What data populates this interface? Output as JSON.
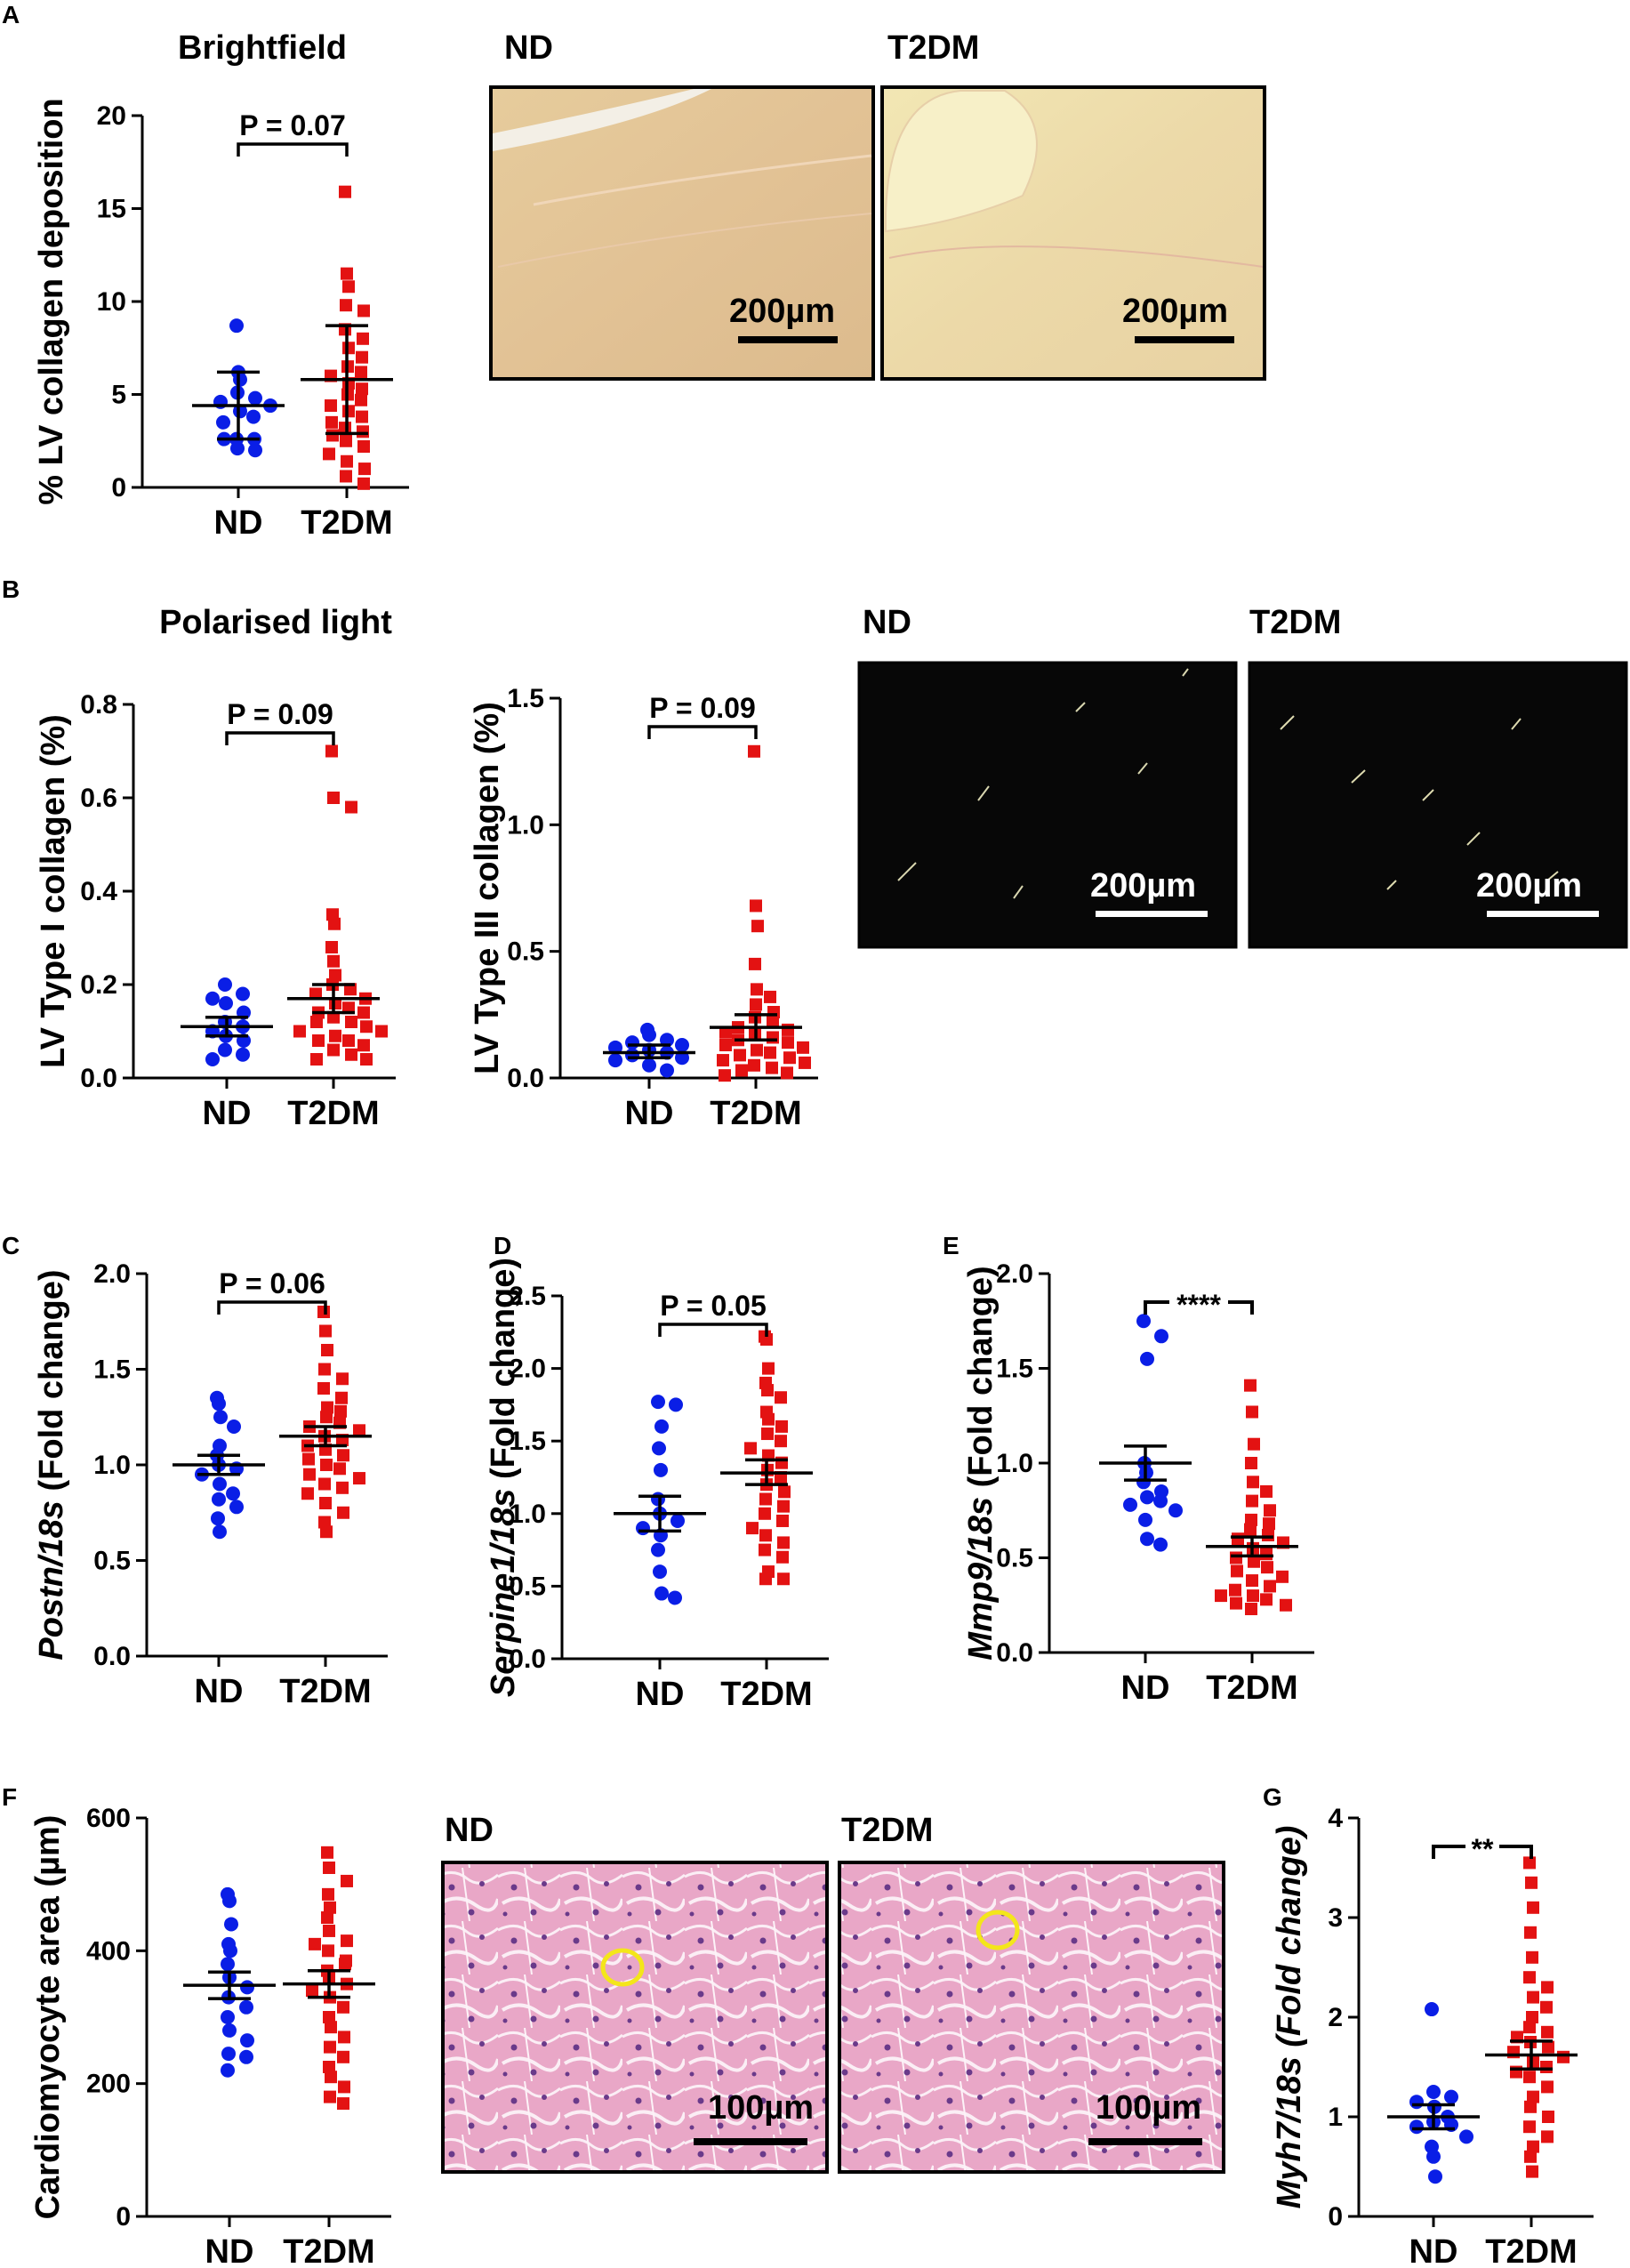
{
  "colors": {
    "nd": "#0a1ee6",
    "t2dm": "#e31212",
    "axis": "#000000"
  },
  "images": {
    "A": {
      "groups": [
        "ND",
        "T2DM"
      ],
      "scalebar": "200µm",
      "style": "brightfield"
    },
    "B": {
      "groups": [
        "ND",
        "T2DM"
      ],
      "scalebar": "200µm",
      "style": "polarised"
    },
    "F": {
      "groups": [
        "ND",
        "T2DM"
      ],
      "scalebar": "100µm",
      "style": "he"
    }
  },
  "chart_data": [
    {
      "id": "A",
      "panel": "A",
      "type": "scatter",
      "title": "Brightfield",
      "ylabel": "% LV collagen deposition",
      "ylim": [
        0,
        20
      ],
      "yticks": [
        0,
        5,
        10,
        15,
        20
      ],
      "yticklabels": [
        "0",
        "5",
        "10",
        "15",
        "20"
      ],
      "categories": [
        "ND",
        "T2DM"
      ],
      "significance": "P = 0.07",
      "summary": [
        {
          "center": 4.4,
          "lo": 2.6,
          "hi": 6.2
        },
        {
          "center": 5.8,
          "lo": 2.9,
          "hi": 8.7
        }
      ],
      "series": [
        {
          "group": "ND",
          "values": [
            8.7,
            6.2,
            5.8,
            5.1,
            4.8,
            4.6,
            4.4,
            4.1,
            3.8,
            3.5,
            2.6,
            2.6,
            2.6,
            2.1,
            2.0
          ]
        },
        {
          "group": "T2DM",
          "values": [
            15.9,
            11.5,
            10.8,
            9.8,
            9.5,
            8.5,
            8.0,
            7.5,
            7.0,
            6.5,
            6.2,
            6.0,
            5.6,
            5.3,
            5.0,
            4.7,
            4.4,
            4.1,
            3.8,
            3.5,
            3.2,
            3.0,
            2.8,
            2.5,
            2.2,
            1.8,
            1.4,
            1.0,
            0.6,
            0.2
          ]
        }
      ]
    },
    {
      "id": "B1",
      "panel": "B",
      "type": "scatter",
      "title": "Polarised light",
      "ylabel": "LV Type I collagen (%)",
      "ylim": [
        0,
        0.8
      ],
      "yticks": [
        0,
        0.2,
        0.4,
        0.6,
        0.8
      ],
      "yticklabels": [
        "0.0",
        "0.2",
        "0.4",
        "0.6",
        "0.8"
      ],
      "categories": [
        "ND",
        "T2DM"
      ],
      "significance": "P = 0.09",
      "summary": [
        {
          "center": 0.11,
          "lo": 0.09,
          "hi": 0.13
        },
        {
          "center": 0.17,
          "lo": 0.14,
          "hi": 0.2
        }
      ],
      "series": [
        {
          "group": "ND",
          "values": [
            0.2,
            0.18,
            0.17,
            0.16,
            0.14,
            0.12,
            0.11,
            0.1,
            0.09,
            0.08,
            0.06,
            0.05,
            0.04
          ]
        },
        {
          "group": "T2DM",
          "values": [
            0.7,
            0.6,
            0.58,
            0.35,
            0.33,
            0.28,
            0.25,
            0.22,
            0.2,
            0.19,
            0.18,
            0.17,
            0.16,
            0.15,
            0.14,
            0.14,
            0.13,
            0.12,
            0.12,
            0.11,
            0.1,
            0.1,
            0.09,
            0.08,
            0.08,
            0.07,
            0.06,
            0.05,
            0.04,
            0.04
          ]
        }
      ]
    },
    {
      "id": "B2",
      "panel": "",
      "type": "scatter",
      "title": "",
      "ylabel": "LV Type III collagen (%)",
      "ylim": [
        0,
        1.5
      ],
      "yticks": [
        0,
        0.5,
        1.0,
        1.5
      ],
      "yticklabels": [
        "0.0",
        "0.5",
        "1.0",
        "1.5"
      ],
      "categories": [
        "ND",
        "T2DM"
      ],
      "significance": "P = 0.09",
      "summary": [
        {
          "center": 0.1,
          "lo": 0.08,
          "hi": 0.13
        },
        {
          "center": 0.2,
          "lo": 0.15,
          "hi": 0.25
        }
      ],
      "series": [
        {
          "group": "ND",
          "values": [
            0.19,
            0.17,
            0.15,
            0.14,
            0.13,
            0.12,
            0.11,
            0.1,
            0.09,
            0.08,
            0.07,
            0.05,
            0.03
          ]
        },
        {
          "group": "T2DM",
          "values": [
            1.29,
            0.68,
            0.6,
            0.45,
            0.35,
            0.32,
            0.29,
            0.26,
            0.24,
            0.22,
            0.2,
            0.19,
            0.18,
            0.17,
            0.16,
            0.15,
            0.14,
            0.13,
            0.12,
            0.11,
            0.1,
            0.09,
            0.08,
            0.07,
            0.06,
            0.05,
            0.04,
            0.03,
            0.02,
            0.01
          ]
        }
      ]
    },
    {
      "id": "C",
      "panel": "C",
      "type": "scatter",
      "title": "",
      "ylabel_parts": [
        {
          "t": "Postn/18s",
          "i": true
        },
        {
          "t": " (Fold change)",
          "i": false
        }
      ],
      "ylabel": "Postn/18s (Fold change)",
      "ylim": [
        0,
        2
      ],
      "yticks": [
        0,
        0.5,
        1,
        1.5,
        2
      ],
      "yticklabels": [
        "0.0",
        "0.5",
        "1.0",
        "1.5",
        "2.0"
      ],
      "categories": [
        "ND",
        "T2DM"
      ],
      "significance": "P = 0.06",
      "summary": [
        {
          "center": 1.0,
          "lo": 0.95,
          "hi": 1.05
        },
        {
          "center": 1.15,
          "lo": 1.1,
          "hi": 1.2
        }
      ],
      "series": [
        {
          "group": "ND",
          "values": [
            1.35,
            1.32,
            1.25,
            1.2,
            1.1,
            1.05,
            1.0,
            0.98,
            0.95,
            0.9,
            0.85,
            0.82,
            0.78,
            0.72,
            0.65
          ]
        },
        {
          "group": "T2DM",
          "values": [
            1.8,
            1.7,
            1.6,
            1.5,
            1.45,
            1.4,
            1.35,
            1.3,
            1.28,
            1.25,
            1.22,
            1.2,
            1.18,
            1.15,
            1.13,
            1.1,
            1.08,
            1.05,
            1.03,
            1.0,
            0.98,
            0.95,
            0.93,
            0.9,
            0.88,
            0.85,
            0.8,
            0.75,
            0.7,
            0.65
          ]
        }
      ]
    },
    {
      "id": "D",
      "panel": "D",
      "type": "scatter",
      "title": "",
      "ylabel_parts": [
        {
          "t": "Serpine1/18s",
          "i": true
        },
        {
          "t": " (Fold change)",
          "i": false
        }
      ],
      "ylabel": "Serpine1/18s (Fold change)",
      "ylim": [
        0,
        2.5
      ],
      "yticks": [
        0,
        0.5,
        1,
        1.5,
        2,
        2.5
      ],
      "yticklabels": [
        "0.0",
        "0.5",
        "1.0",
        "1.5",
        "2.0",
        "2.5"
      ],
      "categories": [
        "ND",
        "T2DM"
      ],
      "significance": "P = 0.05",
      "summary": [
        {
          "center": 1.0,
          "lo": 0.88,
          "hi": 1.12
        },
        {
          "center": 1.28,
          "lo": 1.2,
          "hi": 1.37
        }
      ],
      "series": [
        {
          "group": "ND",
          "values": [
            1.77,
            1.75,
            1.6,
            1.45,
            1.3,
            1.1,
            1.0,
            0.95,
            0.9,
            0.85,
            0.75,
            0.6,
            0.45,
            0.42
          ]
        },
        {
          "group": "T2DM",
          "values": [
            2.22,
            2.2,
            2.0,
            1.9,
            1.85,
            1.8,
            1.7,
            1.65,
            1.6,
            1.55,
            1.5,
            1.45,
            1.4,
            1.35,
            1.3,
            1.25,
            1.2,
            1.15,
            1.1,
            1.05,
            1.0,
            0.95,
            0.9,
            0.85,
            0.8,
            0.75,
            0.7,
            0.6,
            0.55,
            0.55
          ]
        }
      ]
    },
    {
      "id": "E",
      "panel": "E",
      "type": "scatter",
      "title": "",
      "ylabel_parts": [
        {
          "t": "Mmp9/18s",
          "i": true
        },
        {
          "t": " (Fold change)",
          "i": false
        }
      ],
      "ylabel": "Mmp9/18s (Fold change)",
      "ylim": [
        0,
        2
      ],
      "yticks": [
        0,
        0.5,
        1,
        1.5,
        2
      ],
      "yticklabels": [
        "0.0",
        "0.5",
        "1.0",
        "1.5",
        "2.0"
      ],
      "categories": [
        "ND",
        "T2DM"
      ],
      "significance": "****",
      "summary": [
        {
          "center": 1.0,
          "lo": 0.91,
          "hi": 1.09
        },
        {
          "center": 0.56,
          "lo": 0.51,
          "hi": 0.61
        }
      ],
      "series": [
        {
          "group": "ND",
          "values": [
            1.75,
            1.67,
            1.55,
            1.0,
            0.95,
            0.9,
            0.85,
            0.82,
            0.8,
            0.78,
            0.75,
            0.7,
            0.6,
            0.57
          ]
        },
        {
          "group": "T2DM",
          "values": [
            1.41,
            1.27,
            1.1,
            1.0,
            0.9,
            0.85,
            0.8,
            0.75,
            0.7,
            0.68,
            0.65,
            0.62,
            0.6,
            0.58,
            0.55,
            0.52,
            0.5,
            0.48,
            0.45,
            0.43,
            0.4,
            0.38,
            0.35,
            0.33,
            0.3,
            0.28,
            0.26,
            0.25,
            0.23,
            0.3
          ]
        }
      ]
    },
    {
      "id": "F",
      "panel": "F",
      "type": "scatter",
      "title": "",
      "ylabel": "Cardiomyocyte area (µm)",
      "ylim": [
        0,
        600
      ],
      "yticks": [
        0,
        200,
        400,
        600
      ],
      "yticklabels": [
        "0",
        "200",
        "400",
        "600"
      ],
      "categories": [
        "ND",
        "T2DM"
      ],
      "significance": "",
      "summary": [
        {
          "center": 348,
          "lo": 328,
          "hi": 368
        },
        {
          "center": 350,
          "lo": 330,
          "hi": 370
        }
      ],
      "series": [
        {
          "group": "ND",
          "values": [
            485,
            475,
            440,
            410,
            400,
            380,
            360,
            345,
            330,
            315,
            300,
            280,
            265,
            245,
            240,
            220
          ]
        },
        {
          "group": "T2DM",
          "values": [
            548,
            525,
            505,
            485,
            465,
            450,
            430,
            415,
            400,
            385,
            370,
            360,
            350,
            340,
            330,
            315,
            300,
            285,
            270,
            255,
            240,
            225,
            210,
            195,
            180,
            170,
            380,
            410
          ]
        }
      ]
    },
    {
      "id": "G",
      "panel": "G",
      "type": "scatter",
      "title": "",
      "ylabel_parts": [
        {
          "t": "Myh7/18s (Fold change)",
          "i": true
        }
      ],
      "ylabel": "Myh7/18s (Fold change)",
      "ylim": [
        0,
        4
      ],
      "yticks": [
        0,
        1,
        2,
        3,
        4
      ],
      "yticklabels": [
        "0",
        "1",
        "2",
        "3",
        "4"
      ],
      "categories": [
        "ND",
        "T2DM"
      ],
      "significance": "**",
      "summary": [
        {
          "center": 1.0,
          "lo": 0.88,
          "hi": 1.12
        },
        {
          "center": 1.62,
          "lo": 1.48,
          "hi": 1.76
        }
      ],
      "series": [
        {
          "group": "ND",
          "values": [
            2.08,
            1.25,
            1.2,
            1.15,
            1.1,
            1.0,
            0.95,
            0.92,
            0.9,
            0.8,
            0.7,
            0.6,
            0.4
          ]
        },
        {
          "group": "T2DM",
          "values": [
            3.55,
            3.35,
            3.1,
            2.85,
            2.6,
            2.4,
            2.3,
            2.2,
            2.1,
            2.0,
            1.9,
            1.85,
            1.8,
            1.75,
            1.7,
            1.65,
            1.6,
            1.55,
            1.5,
            1.45,
            1.4,
            1.3,
            1.2,
            1.1,
            1.0,
            0.9,
            0.8,
            0.7,
            0.6,
            0.45
          ]
        }
      ]
    }
  ]
}
